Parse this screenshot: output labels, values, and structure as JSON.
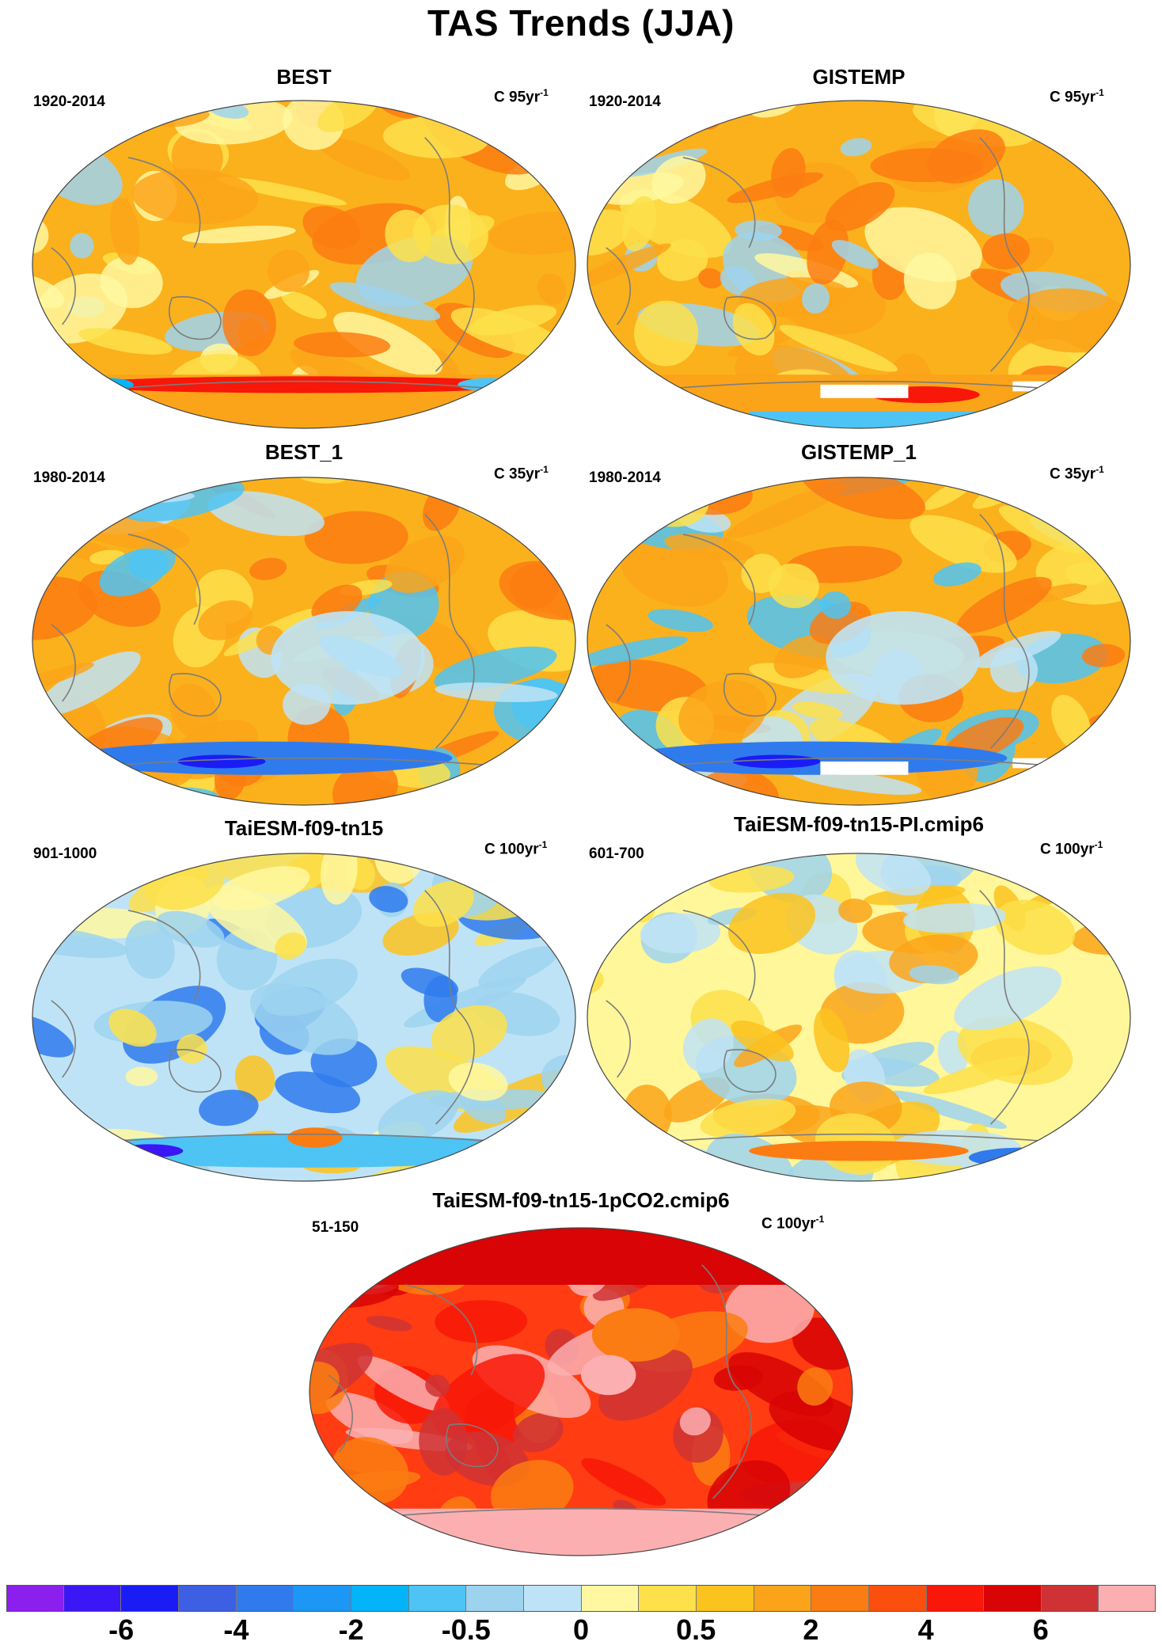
{
  "figure_title": "TAS Trends (JJA)",
  "panels": [
    {
      "name": "BEST",
      "years": "1920-2014",
      "units_prefix": "C 95yr",
      "units_exp": "-1",
      "base": "#fbb11c",
      "theme": "warm-obs",
      "white_patch": false
    },
    {
      "name": "GISTEMP",
      "years": "1920-2014",
      "units_prefix": "C 95yr",
      "units_exp": "-1",
      "base": "#fbb11c",
      "theme": "warm-obs",
      "white_patch": true
    },
    {
      "name": "BEST_1",
      "years": "1980-2014",
      "units_prefix": "C 35yr",
      "units_exp": "-1",
      "base": "#fbb11c",
      "theme": "mixed-obs",
      "white_patch": false
    },
    {
      "name": "GISTEMP_1",
      "years": "1980-2014",
      "units_prefix": "C 35yr",
      "units_exp": "-1",
      "base": "#fbb11c",
      "theme": "mixed-obs",
      "white_patch": true
    },
    {
      "name": "TaiESM-f09-tn15",
      "years": "901-1000",
      "units_prefix": "C 100yr",
      "units_exp": "-1",
      "base": "#bfe3f6",
      "theme": "cool-model",
      "white_patch": false
    },
    {
      "name": "TaiESM-f09-tn15-PI.cmip6",
      "years": "601-700",
      "units_prefix": "C 100yr",
      "units_exp": "-1",
      "base": "#fff79a",
      "theme": "neutral-model",
      "white_patch": false
    },
    {
      "name": "TaiESM-f09-tn15-1pCO2.cmip6",
      "years": "51-150",
      "units_prefix": "C 100yr",
      "units_exp": "-1",
      "base": "#ff3c12",
      "theme": "hot-model",
      "white_patch": false
    }
  ],
  "colorbar": {
    "colors": [
      "#8b1fee",
      "#3b17f5",
      "#1a1cf6",
      "#3c5fe4",
      "#2f7bed",
      "#1d97f6",
      "#04b4f8",
      "#4ec4f4",
      "#9dd3ef",
      "#bfe3f6",
      "#fff8a0",
      "#fde04a",
      "#fbc31e",
      "#fba41a",
      "#fb7c12",
      "#fb4f0e",
      "#f81708",
      "#d80405",
      "#cf3235",
      "#fcafb1"
    ],
    "tick_labels": [
      "-6",
      "-4",
      "-2",
      "-0.5",
      "0",
      "0.5",
      "2",
      "4",
      "6"
    ]
  }
}
